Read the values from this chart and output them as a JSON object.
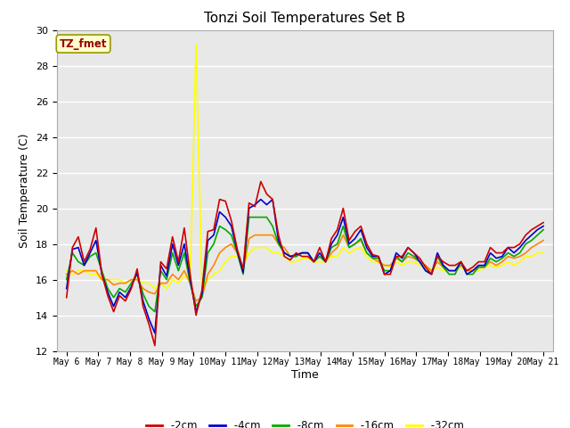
{
  "title": "Tonzi Soil Temperatures Set B",
  "xlabel": "Time",
  "ylabel": "Soil Temperature (C)",
  "ylim": [
    12,
    30
  ],
  "colors": {
    "-2cm": "#cc0000",
    "-4cm": "#0000cc",
    "-8cm": "#00aa00",
    "-16cm": "#ff8800",
    "-32cm": "#ffff00"
  },
  "annotation_text": "TZ_fmet",
  "annotation_box_facecolor": "#ffffcc",
  "annotation_box_edgecolor": "#999900",
  "annotation_text_color": "#990000",
  "plot_bg_color": "#e8e8e8",
  "fig_bg_color": "#ffffff",
  "grid_color": "#ffffff",
  "xtick_labels": [
    "May 6",
    "May 7",
    "May 8",
    "May 9",
    "May 10",
    "May 11",
    "May 12",
    "May 13",
    "May 14",
    "May 15",
    "May 16",
    "May 17",
    "May 18",
    "May 19",
    "May 20",
    "May 21"
  ],
  "series": {
    "-2cm": [
      15.0,
      17.8,
      18.4,
      17.0,
      17.7,
      18.9,
      16.3,
      15.1,
      14.2,
      15.1,
      14.8,
      15.5,
      16.6,
      14.5,
      13.5,
      12.3,
      17.0,
      16.6,
      18.4,
      17.0,
      18.9,
      16.3,
      14.0,
      15.4,
      18.7,
      18.8,
      20.5,
      20.4,
      19.3,
      17.7,
      16.6,
      20.3,
      20.1,
      21.5,
      20.8,
      20.5,
      18.5,
      17.3,
      17.1,
      17.5,
      17.3,
      17.3,
      17.0,
      17.8,
      17.0,
      18.3,
      18.8,
      20.0,
      18.2,
      18.7,
      19.0,
      18.0,
      17.4,
      17.3,
      16.3,
      16.3,
      17.3,
      17.3,
      17.8,
      17.5,
      17.2,
      16.7,
      16.3,
      17.3,
      17.0,
      16.8,
      16.8,
      17.0,
      16.5,
      16.7,
      17.0,
      17.0,
      17.8,
      17.5,
      17.5,
      17.8,
      17.8,
      18.0,
      18.5,
      18.8,
      19.0,
      19.2
    ],
    "-4cm": [
      15.5,
      17.7,
      17.8,
      16.8,
      17.5,
      18.2,
      16.3,
      15.3,
      14.5,
      15.3,
      15.0,
      15.6,
      16.4,
      14.8,
      13.8,
      13.0,
      16.8,
      16.2,
      18.0,
      16.8,
      18.0,
      16.0,
      14.2,
      15.2,
      18.2,
      18.5,
      19.8,
      19.5,
      19.0,
      17.6,
      16.4,
      20.0,
      20.2,
      20.5,
      20.2,
      20.5,
      18.2,
      17.5,
      17.3,
      17.4,
      17.5,
      17.5,
      17.0,
      17.5,
      17.0,
      18.0,
      18.5,
      19.5,
      18.0,
      18.3,
      18.8,
      17.8,
      17.3,
      17.3,
      16.3,
      16.5,
      17.5,
      17.2,
      17.8,
      17.5,
      17.0,
      16.5,
      16.3,
      17.5,
      16.8,
      16.5,
      16.5,
      17.0,
      16.3,
      16.5,
      16.8,
      16.8,
      17.5,
      17.2,
      17.3,
      17.8,
      17.5,
      17.8,
      18.2,
      18.5,
      18.8,
      19.0
    ],
    "-8cm": [
      16.0,
      17.5,
      17.0,
      16.8,
      17.3,
      17.5,
      16.5,
      15.5,
      15.0,
      15.5,
      15.3,
      15.8,
      16.3,
      15.2,
      14.5,
      14.2,
      16.5,
      16.0,
      17.5,
      16.5,
      17.5,
      15.8,
      14.5,
      15.0,
      17.5,
      18.0,
      19.0,
      18.8,
      18.5,
      17.5,
      16.3,
      19.5,
      19.5,
      19.5,
      19.5,
      19.0,
      18.0,
      17.5,
      17.3,
      17.3,
      17.5,
      17.5,
      17.0,
      17.3,
      17.0,
      17.8,
      18.0,
      19.0,
      17.8,
      18.0,
      18.3,
      17.5,
      17.2,
      17.2,
      16.5,
      16.5,
      17.3,
      17.0,
      17.5,
      17.3,
      17.0,
      16.5,
      16.3,
      17.3,
      16.7,
      16.3,
      16.3,
      17.0,
      16.3,
      16.3,
      16.7,
      16.7,
      17.2,
      17.0,
      17.2,
      17.5,
      17.3,
      17.5,
      18.0,
      18.2,
      18.5,
      18.8
    ],
    "-16cm": [
      16.3,
      16.5,
      16.3,
      16.5,
      16.5,
      16.5,
      16.0,
      16.0,
      15.7,
      15.8,
      15.8,
      16.0,
      16.0,
      15.5,
      15.3,
      15.2,
      15.8,
      15.8,
      16.3,
      16.0,
      16.5,
      15.8,
      14.8,
      15.0,
      16.3,
      16.8,
      17.5,
      17.8,
      18.0,
      17.5,
      16.5,
      18.3,
      18.5,
      18.5,
      18.5,
      18.5,
      18.0,
      17.8,
      17.3,
      17.3,
      17.5,
      17.5,
      17.0,
      17.3,
      17.0,
      17.5,
      17.8,
      18.5,
      17.8,
      18.0,
      18.2,
      17.5,
      17.2,
      17.0,
      16.8,
      16.8,
      17.2,
      17.0,
      17.3,
      17.2,
      17.0,
      16.8,
      16.5,
      17.0,
      16.7,
      16.5,
      16.5,
      16.8,
      16.5,
      16.5,
      16.7,
      16.7,
      17.0,
      16.8,
      17.0,
      17.3,
      17.2,
      17.3,
      17.5,
      17.8,
      18.0,
      18.2
    ],
    "-32cm": [
      16.5,
      16.3,
      16.5,
      16.5,
      16.3,
      16.3,
      16.0,
      16.0,
      16.0,
      16.0,
      15.8,
      16.0,
      16.0,
      15.8,
      15.8,
      15.5,
      15.8,
      15.5,
      16.0,
      15.8,
      16.2,
      16.0,
      29.2,
      15.5,
      16.0,
      16.3,
      16.5,
      17.0,
      17.3,
      17.3,
      16.8,
      17.5,
      17.8,
      17.8,
      17.8,
      17.5,
      17.5,
      17.3,
      17.0,
      17.0,
      17.2,
      17.2,
      17.0,
      17.0,
      17.0,
      17.3,
      17.3,
      17.8,
      17.5,
      17.7,
      17.8,
      17.3,
      17.0,
      17.0,
      16.8,
      16.7,
      17.0,
      16.8,
      17.0,
      17.0,
      16.8,
      16.7,
      16.5,
      16.7,
      16.5,
      16.5,
      16.5,
      16.7,
      16.5,
      16.5,
      16.5,
      16.7,
      16.8,
      16.7,
      16.8,
      17.0,
      16.8,
      17.0,
      17.3,
      17.3,
      17.5,
      17.5
    ]
  }
}
